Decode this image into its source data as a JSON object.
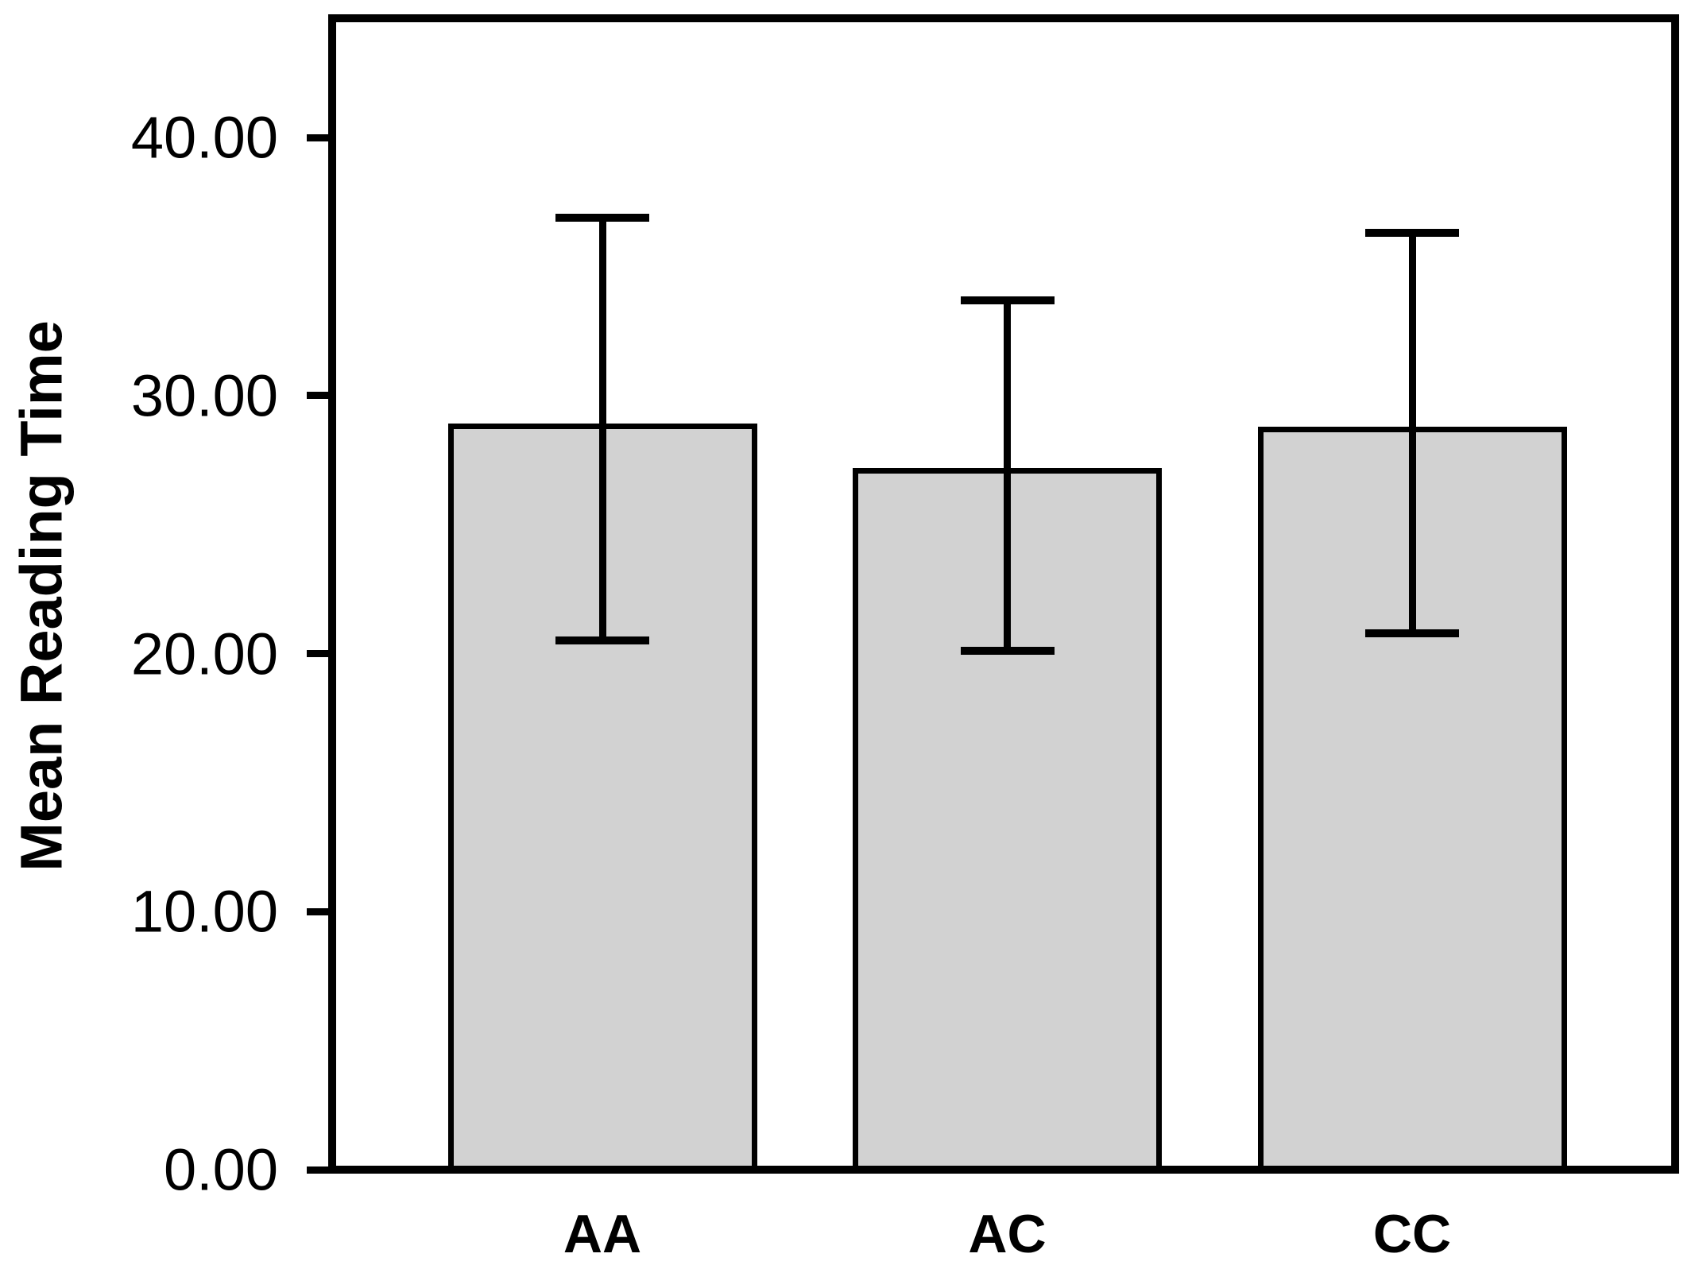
{
  "figure": {
    "background": "#ffffff"
  },
  "chart_data": {
    "type": "bar",
    "title": "",
    "xlabel": "",
    "ylabel": "Mean Reading Time",
    "categories": [
      "AA",
      "AC",
      "CC"
    ],
    "values": [
      28.9,
      27.2,
      28.8
    ],
    "error_bars": {
      "upper_caps": [
        36.9,
        33.7,
        36.3
      ],
      "lower_caps": [
        20.5,
        20.1,
        20.8
      ]
    },
    "yticks": {
      "values": [
        0,
        10,
        20,
        30,
        40
      ],
      "labels": [
        "0.00",
        "10.00",
        "20.00",
        "30.00",
        "40.00"
      ]
    },
    "ylim": [
      0,
      44.3
    ],
    "grid": false,
    "legend": null,
    "colors": {
      "bar_fill": "#d2d2d2",
      "bar_edge": "#000000",
      "axis": "#000000",
      "text": "#000000",
      "background": "#ffffff"
    }
  }
}
